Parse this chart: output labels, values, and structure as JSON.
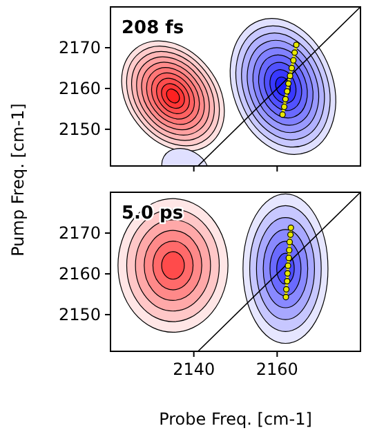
{
  "chart_data": [
    {
      "type": "line",
      "annotations": [
        "208 fs"
      ],
      "ylabel": "Pump Freq. [cm-1]",
      "xlim": [
        2120,
        2180
      ],
      "ylim": [
        2141,
        2180
      ],
      "xticks": [
        {
          "value": 2140,
          "label": null
        },
        {
          "value": 2160,
          "label": null
        }
      ],
      "yticks": [
        2150,
        2160,
        2170
      ],
      "tick_labels": "y",
      "grid": false,
      "series": [
        {
          "color": "#000000",
          "x": [
            2141,
            2180
          ],
          "values": [
            2141,
            2180
          ],
          "marker": "none"
        },
        {
          "color": "#e8e800",
          "x": [
            2161.3,
            2161.7,
            2162.0,
            2162.4,
            2162.7,
            2163.1,
            2163.5,
            2163.9,
            2164.2,
            2164.6
          ],
          "values": [
            2153.6,
            2155.5,
            2157.4,
            2159.3,
            2161.2,
            2163.1,
            2165.0,
            2166.9,
            2168.8,
            2170.7
          ],
          "marker": "circle"
        }
      ]
    },
    {
      "type": "line",
      "annotations": [
        "5.0 ps"
      ],
      "xlabel": "Probe Freq. [cm-1]",
      "xlim": [
        2120,
        2180
      ],
      "ylim": [
        2141,
        2180
      ],
      "xticks": [
        2140,
        2160
      ],
      "yticks": [
        2150,
        2160,
        2170
      ],
      "grid": false,
      "series": [
        {
          "color": "#000000",
          "x": [
            2141,
            2180
          ],
          "values": [
            2141,
            2180
          ],
          "marker": "none"
        },
        {
          "color": "#e8e800",
          "x": [
            2162.1,
            2162.2,
            2162.4,
            2162.5,
            2162.6,
            2162.8,
            2162.9,
            2163.0,
            2163.2,
            2163.3
          ],
          "values": [
            2154.3,
            2156.2,
            2158.2,
            2160.1,
            2162.0,
            2163.9,
            2165.8,
            2167.8,
            2169.6,
            2171.3
          ],
          "marker": "circle"
        }
      ]
    }
  ]
}
